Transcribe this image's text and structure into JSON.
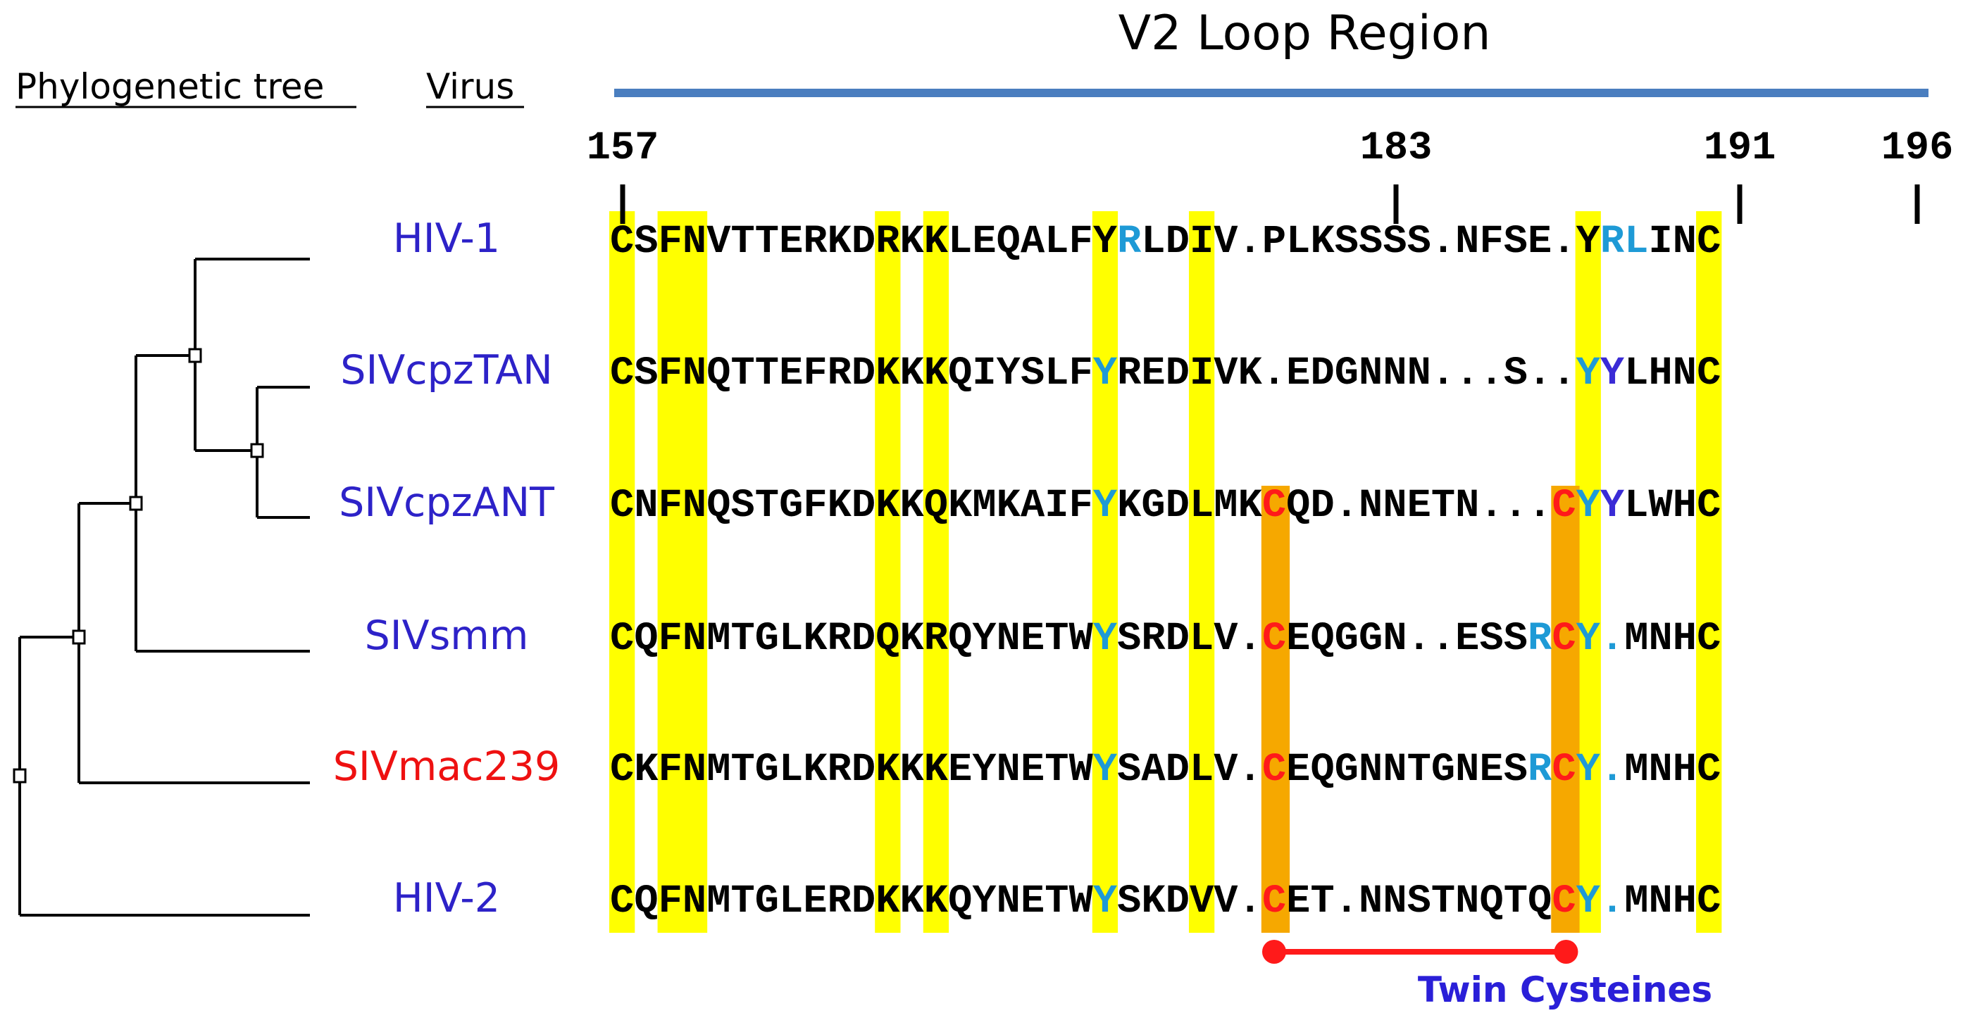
{
  "title": "V2 Loop Region",
  "headers": {
    "tree": "Phylogenetic tree",
    "virus": "Virus"
  },
  "positions": [
    "157",
    "183",
    "191",
    "196"
  ],
  "twin_label": "Twin Cysteines",
  "colors": {
    "region_bar": "#4a7ebf",
    "highlight": "#ffff00",
    "twin_highlight": "#f6a800",
    "cysteine_red": "#ff1a1a",
    "residue_blue": "#1e9ad6",
    "residue_purple": "#3a2bd6",
    "virus_blue": "#2d22c8",
    "virus_red": "#ee1111"
  },
  "viruses": [
    {
      "name": "HIV-1",
      "color": "blue",
      "sequence": "CSFNVTTERKDRKKLEQALFYRLDIV.PLKSSSS.NFSE.YRLINC",
      "colored": [
        [
          21,
          "#1e9ad6"
        ],
        [
          41,
          "#1e9ad6"
        ],
        [
          42,
          "#1e9ad6"
        ]
      ]
    },
    {
      "name": "SIVcpzTAN",
      "color": "blue",
      "sequence": "CSFNQTTEFRDKKKQIYSLFYREDIVK.EDGNNN...S..YYLHNC",
      "colored": [
        [
          20,
          "#1e9ad6"
        ],
        [
          40,
          "#1e9ad6"
        ],
        [
          41,
          "#3a2bd6"
        ]
      ]
    },
    {
      "name": "SIVcpzANT",
      "color": "blue",
      "sequence": "CNFNQSTGFKDKKQKMKAIFYKGDLMKCQD.NNETN...CYYLWHC",
      "colored": [
        [
          20,
          "#1e9ad6"
        ],
        [
          27,
          "#ff1a1a"
        ],
        [
          39,
          "#ff1a1a"
        ],
        [
          40,
          "#1e9ad6"
        ],
        [
          41,
          "#3a2bd6"
        ]
      ]
    },
    {
      "name": "SIVsmm",
      "color": "blue",
      "sequence": "CQFNMTGLKRDQKRQYNETWYSRDLV.CEQGGN..ESSRCY.MNHC",
      "colored": [
        [
          20,
          "#1e9ad6"
        ],
        [
          27,
          "#ff1a1a"
        ],
        [
          38,
          "#1e9ad6"
        ],
        [
          39,
          "#ff1a1a"
        ],
        [
          40,
          "#1e9ad6"
        ],
        [
          41,
          "#1e9ad6"
        ]
      ]
    },
    {
      "name": "SIVmac239",
      "color": "red",
      "sequence": "CKFNMTGLKRDKKKEYNETWYSADLV.CEQGNNTGNESRCY.MNHC",
      "colored": [
        [
          20,
          "#1e9ad6"
        ],
        [
          27,
          "#ff1a1a"
        ],
        [
          38,
          "#1e9ad6"
        ],
        [
          39,
          "#ff1a1a"
        ],
        [
          40,
          "#1e9ad6"
        ],
        [
          41,
          "#1e9ad6"
        ]
      ]
    },
    {
      "name": "HIV-2",
      "color": "blue",
      "sequence": "CQFNMTGLERDKKKQYNETWYSKDVV.CET.NNSTNQTQCY.MNHC",
      "colored": [
        [
          20,
          "#1e9ad6"
        ],
        [
          27,
          "#ff1a1a"
        ],
        [
          39,
          "#ff1a1a"
        ],
        [
          40,
          "#1e9ad6"
        ],
        [
          41,
          "#1e9ad6"
        ]
      ]
    }
  ]
}
